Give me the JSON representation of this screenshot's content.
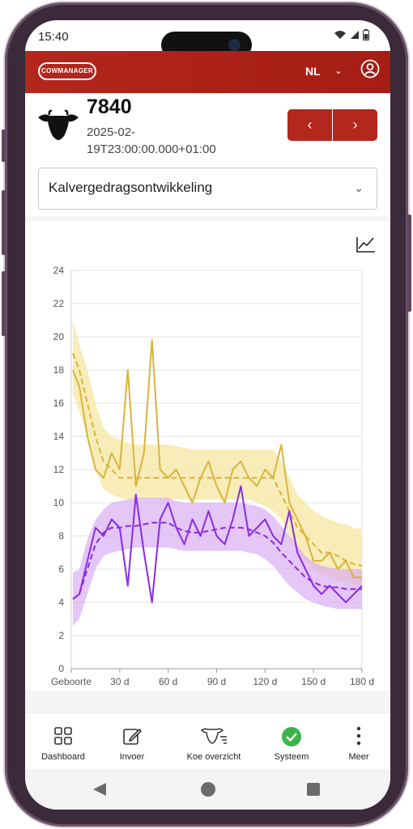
{
  "status_bar": {
    "time": "15:40"
  },
  "app_bar": {
    "logo_text": "COWMANAGER",
    "language": "NL"
  },
  "animal": {
    "id": "7840",
    "datetime": "2025-02-19T23:00:00.000+01:00"
  },
  "nav": {
    "prev_icon": "chevron-left-icon",
    "next_icon": "chevron-right-icon"
  },
  "view_select": {
    "value": "Kalvergedragsontwikkeling"
  },
  "chart_data": {
    "type": "line",
    "xlabel": "",
    "ylabel": "",
    "x_ticks": [
      "Geboorte",
      "30 d",
      "60 d",
      "90 d",
      "120 d",
      "150 d",
      "180 d"
    ],
    "xlim": [
      0,
      180
    ],
    "ylim": [
      0,
      24
    ],
    "y_ticks": [
      0,
      2,
      4,
      6,
      8,
      10,
      12,
      14,
      16,
      18,
      20,
      22,
      24
    ],
    "grid": true,
    "x": [
      1,
      5,
      10,
      15,
      20,
      25,
      30,
      35,
      40,
      45,
      50,
      55,
      60,
      65,
      70,
      75,
      80,
      85,
      90,
      95,
      100,
      105,
      110,
      115,
      120,
      125,
      130,
      135,
      140,
      145,
      150,
      155,
      160,
      165,
      170,
      175,
      180
    ],
    "series": [
      {
        "color": "#d9b43a",
        "style": "solid",
        "values": [
          18,
          17,
          14,
          12,
          11.5,
          13,
          12,
          18,
          11,
          13,
          19.8,
          12,
          11.5,
          12,
          11,
          10,
          11.5,
          12.5,
          11,
          10,
          12,
          12.5,
          11.5,
          11,
          12,
          11.5,
          13.5,
          10,
          9,
          8,
          6.5,
          6.5,
          7,
          6,
          6.5,
          5.5,
          5.5
        ]
      },
      {
        "color": "#d9b43a",
        "style": "dashed",
        "values": [
          19,
          18,
          16,
          14,
          12.5,
          12,
          11.5,
          11.5,
          11.5,
          11.5,
          11.5,
          11.5,
          11.5,
          11.5,
          11.5,
          11.5,
          11.5,
          11.5,
          11.5,
          11.5,
          11.5,
          11.5,
          11.5,
          11.5,
          11.5,
          11.5,
          10.5,
          9.5,
          8.5,
          8,
          7.5,
          7,
          7,
          6.8,
          6.5,
          6.3,
          6.2
        ]
      },
      {
        "color": "#8a2be2",
        "style": "solid",
        "values": [
          4.2,
          4.5,
          6.5,
          8.5,
          8,
          9,
          8.5,
          5,
          10.5,
          7,
          4,
          9,
          10,
          8.5,
          7.5,
          9,
          8,
          9.5,
          8,
          7.5,
          9,
          11,
          8,
          8.5,
          9,
          8,
          7.5,
          9.5,
          7,
          6,
          5,
          4.5,
          5,
          4.5,
          4,
          4.5,
          5
        ]
      },
      {
        "color": "#8a2be2",
        "style": "dashed",
        "values": [
          4.2,
          4.5,
          6,
          7.5,
          8.2,
          8.5,
          8.5,
          8.6,
          8.6,
          8.7,
          8.8,
          8.8,
          8.8,
          8.5,
          8.3,
          8.2,
          8.2,
          8.3,
          8.4,
          8.5,
          8.5,
          8.5,
          8.4,
          8.2,
          8,
          7.6,
          7,
          6.5,
          6,
          5.5,
          5.2,
          5,
          4.9,
          4.9,
          4.8,
          4.8,
          4.8
        ]
      }
    ],
    "bands": [
      {
        "color": "#f6e7a0",
        "opacity": 0.75,
        "lower": [
          16.5,
          15.5,
          14,
          12,
          10.8,
          10.5,
          10.3,
          10.2,
          10.2,
          10.2,
          10.2,
          10.2,
          10.2,
          10.2,
          10.2,
          10.2,
          10.2,
          10.2,
          10.2,
          10.2,
          10.2,
          10.2,
          10.2,
          10,
          9.8,
          9.5,
          9,
          8,
          7,
          6.5,
          6,
          5.7,
          5.5,
          5.3,
          5.2,
          5.1,
          5
        ],
        "upper": [
          21,
          19.5,
          18,
          16,
          14.5,
          14,
          13.8,
          13.6,
          13.5,
          13.5,
          13.5,
          13.5,
          13.5,
          13.4,
          13.3,
          13.2,
          13.2,
          13.2,
          13.2,
          13.2,
          13.2,
          13.2,
          13.2,
          13.2,
          13.2,
          13.2,
          12.5,
          11.5,
          10.5,
          10,
          9.5,
          9.2,
          9,
          8.8,
          8.7,
          8.5,
          8.4
        ]
      },
      {
        "color": "#d6a8f2",
        "opacity": 0.65,
        "lower": [
          2.6,
          3,
          4.5,
          6,
          6.8,
          7,
          7.1,
          7.2,
          7.3,
          7.3,
          7.3,
          7.3,
          7.3,
          7.2,
          7.1,
          7.1,
          7.1,
          7.1,
          7.1,
          7.1,
          7.1,
          7.1,
          7.0,
          6.9,
          6.6,
          6.2,
          5.6,
          5,
          4.6,
          4.2,
          4,
          3.8,
          3.7,
          3.6,
          3.6,
          3.6,
          3.6
        ],
        "upper": [
          5.8,
          6,
          7.8,
          9,
          9.6,
          10,
          10.1,
          10.2,
          10.3,
          10.3,
          10.3,
          10.3,
          10.3,
          10.1,
          10,
          10,
          10,
          10,
          10,
          10,
          10,
          10,
          9.9,
          9.8,
          9.6,
          9.2,
          8.6,
          8,
          7.4,
          6.8,
          6.4,
          6.2,
          6.1,
          6,
          6,
          6,
          6
        ]
      }
    ]
  },
  "bottom_nav": [
    {
      "label": "Dashboard",
      "icon": "grid-icon"
    },
    {
      "label": "Invoer",
      "icon": "edit-icon"
    },
    {
      "label": "Koe overzicht",
      "icon": "cow-list-icon"
    },
    {
      "label": "Systeem",
      "icon": "check-circle-icon",
      "color": "#3bb54a"
    },
    {
      "label": "Meer",
      "icon": "more-vertical-icon"
    }
  ],
  "colors": {
    "brand_red": "#b3271d",
    "line_gold": "#d9b43a",
    "line_purple": "#8a2be2"
  }
}
